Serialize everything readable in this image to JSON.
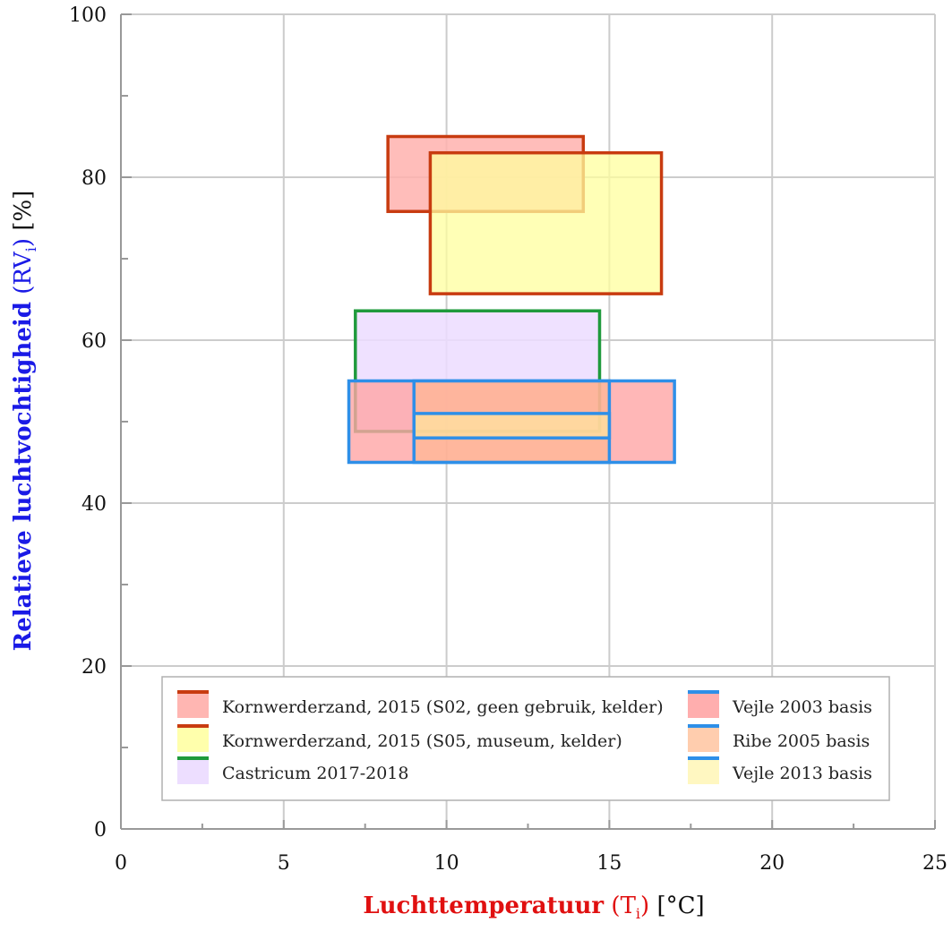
{
  "chart_data": {
    "type": "range-rectangles",
    "xlabel": {
      "main": "Luchttemperatuur",
      "symbol": "T",
      "subscript": "i",
      "unit": "[°C]"
    },
    "ylabel": {
      "main": "Relatieve luchtvochtigheid",
      "symbol": "RV",
      "subscript": "i",
      "unit": "[%]"
    },
    "xlim": [
      0,
      25
    ],
    "ylim": [
      0,
      100
    ],
    "x_ticks": [
      0,
      5,
      10,
      15,
      20,
      25
    ],
    "y_ticks": [
      0,
      20,
      40,
      60,
      80,
      100
    ],
    "x_tick_labels": [
      "0",
      "5",
      "10",
      "15",
      "20",
      "25"
    ],
    "y_tick_labels": [
      "0",
      "20",
      "40",
      "60",
      "80",
      "100"
    ],
    "x_minor_step": 2.5,
    "y_minor_step": 10,
    "grid": true,
    "legend_position": "bottom-center",
    "colors": {
      "title_y": "#1a1ae6",
      "title_x": "#e01010",
      "grid": "#cccccc",
      "axis": "#999999"
    },
    "series": [
      {
        "name": "Kornwerderzand, 2015 (S02, geen gebruik, kelder)",
        "x": [
          8.2,
          14.2
        ],
        "y": [
          75.8,
          85
        ],
        "fill": "#ffb2ae",
        "edge": "#c83b10",
        "fill_opacity": 0.85
      },
      {
        "name": "Kornwerderzand, 2015 (S05, museum, kelder)",
        "x": [
          9.5,
          16.6
        ],
        "y": [
          65.7,
          83
        ],
        "fill": "#ffff9e",
        "edge": "#c83b10",
        "fill_opacity": 0.75
      },
      {
        "name": "Castricum 2017-2018",
        "x": [
          7.2,
          14.7
        ],
        "y": [
          48.8,
          63.6
        ],
        "fill": "#ecdcff",
        "edge": "#1f9a3c",
        "fill_opacity": 0.85
      },
      {
        "name": "Vejle 2003 basis",
        "x": [
          7.0,
          17.0
        ],
        "y": [
          45,
          55
        ],
        "fill": "#ffa5a5",
        "edge": "#2e8fe8",
        "fill_opacity": 0.8
      },
      {
        "name": "Ribe 2005 basis",
        "x": [
          9.0,
          15.0
        ],
        "y": [
          45,
          55
        ],
        "fill": "#ffb88c",
        "edge": "#2e8fe8",
        "fill_opacity": 0.6
      },
      {
        "name": "Vejle 2013 basis",
        "x": [
          9.0,
          15.0
        ],
        "y": [
          48,
          51
        ],
        "fill": "#fff3a0",
        "edge": "#2e8fe8",
        "fill_opacity": 0.55
      }
    ]
  }
}
